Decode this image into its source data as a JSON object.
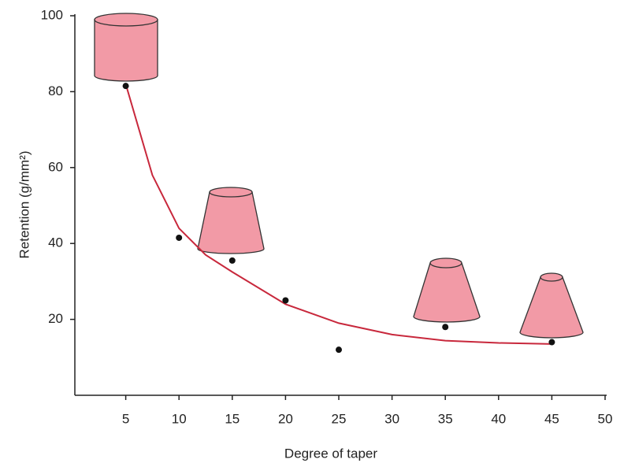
{
  "chart_data": {
    "type": "scatter",
    "xlabel": "Degree of taper",
    "ylabel": "Retention (g/mm²)",
    "xlim": [
      0,
      50
    ],
    "xticks": [
      5,
      10,
      15,
      20,
      25,
      30,
      35,
      40,
      45,
      50
    ],
    "ylim": [
      0,
      100
    ],
    "yticks": [
      20,
      40,
      60,
      80,
      100
    ],
    "points": {
      "color": "#111111",
      "x": [
        5,
        10,
        15,
        20,
        25,
        35,
        45
      ],
      "values": [
        81.5,
        41.5,
        35.5,
        25,
        12,
        18,
        14
      ]
    },
    "curve": {
      "color": "#c8283c",
      "x": [
        5,
        7.5,
        10,
        12.5,
        15,
        20,
        25,
        30,
        35,
        40,
        45
      ],
      "values": [
        82,
        58,
        44,
        37,
        32.5,
        24,
        19,
        16,
        14.4,
        13.8,
        13.5
      ]
    }
  }
}
